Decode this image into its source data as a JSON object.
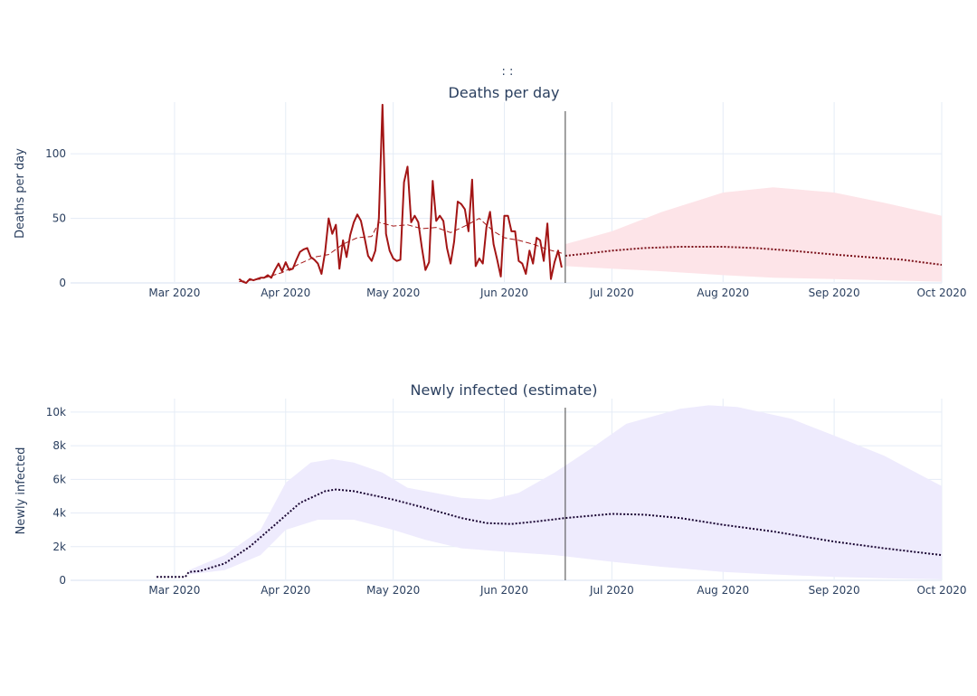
{
  "figure_title": ":          :",
  "colors": {
    "deaths_line": "#a31515",
    "deaths_avg": "#a31515",
    "deaths_forecast": "#7a0f18",
    "deaths_band": "#fde4e8",
    "infected_band": "#eeebfd",
    "infected_line": "#1a0633",
    "grid": "#e5ecf6",
    "divider": "#444444"
  },
  "chart_data": [
    {
      "type": "line",
      "title": "Deaths per day",
      "ylabel": "Deaths per day",
      "xlabel": "",
      "x_range": [
        "2020-02-01",
        "2020-10-01"
      ],
      "ylim": [
        0,
        140
      ],
      "grid": true,
      "x_ticks": [
        {
          "date": "2020-03-01",
          "label": "Mar 2020"
        },
        {
          "date": "2020-04-01",
          "label": "Apr 2020"
        },
        {
          "date": "2020-05-01",
          "label": "May 2020"
        },
        {
          "date": "2020-06-01",
          "label": "Jun 2020"
        },
        {
          "date": "2020-07-01",
          "label": "Jul 2020"
        },
        {
          "date": "2020-08-01",
          "label": "Aug 2020"
        },
        {
          "date": "2020-09-01",
          "label": "Sep 2020"
        },
        {
          "date": "2020-10-01",
          "label": "Oct 2020"
        }
      ],
      "y_ticks": [
        0,
        50,
        100
      ],
      "divider_date": "2020-06-18",
      "observed": {
        "style": "solid",
        "points": [
          [
            "2020-03-19",
            3
          ],
          [
            "2020-03-20",
            1
          ],
          [
            "2020-03-21",
            0
          ],
          [
            "2020-03-22",
            3
          ],
          [
            "2020-03-23",
            2
          ],
          [
            "2020-03-24",
            3
          ],
          [
            "2020-03-25",
            4
          ],
          [
            "2020-03-26",
            4
          ],
          [
            "2020-03-27",
            6
          ],
          [
            "2020-03-28",
            4
          ],
          [
            "2020-03-29",
            10
          ],
          [
            "2020-03-30",
            15
          ],
          [
            "2020-03-31",
            9
          ],
          [
            "2020-04-01",
            16
          ],
          [
            "2020-04-02",
            10
          ],
          [
            "2020-04-03",
            11
          ],
          [
            "2020-04-04",
            18
          ],
          [
            "2020-04-05",
            24
          ],
          [
            "2020-04-06",
            26
          ],
          [
            "2020-04-07",
            27
          ],
          [
            "2020-04-08",
            20
          ],
          [
            "2020-04-09",
            18
          ],
          [
            "2020-04-10",
            15
          ],
          [
            "2020-04-11",
            7
          ],
          [
            "2020-04-12",
            24
          ],
          [
            "2020-04-13",
            50
          ],
          [
            "2020-04-14",
            38
          ],
          [
            "2020-04-15",
            45
          ],
          [
            "2020-04-16",
            11
          ],
          [
            "2020-04-17",
            33
          ],
          [
            "2020-04-18",
            20
          ],
          [
            "2020-04-19",
            37
          ],
          [
            "2020-04-20",
            47
          ],
          [
            "2020-04-21",
            53
          ],
          [
            "2020-04-22",
            48
          ],
          [
            "2020-04-23",
            35
          ],
          [
            "2020-04-24",
            21
          ],
          [
            "2020-04-25",
            17
          ],
          [
            "2020-04-26",
            25
          ],
          [
            "2020-04-27",
            50
          ],
          [
            "2020-04-28",
            138
          ],
          [
            "2020-04-29",
            38
          ],
          [
            "2020-04-30",
            25
          ],
          [
            "2020-05-01",
            19
          ],
          [
            "2020-05-02",
            17
          ],
          [
            "2020-05-03",
            18
          ],
          [
            "2020-05-04",
            78
          ],
          [
            "2020-05-05",
            90
          ],
          [
            "2020-05-06",
            47
          ],
          [
            "2020-05-07",
            52
          ],
          [
            "2020-05-08",
            47
          ],
          [
            "2020-05-09",
            27
          ],
          [
            "2020-05-10",
            10
          ],
          [
            "2020-05-11",
            16
          ],
          [
            "2020-05-12",
            79
          ],
          [
            "2020-05-13",
            48
          ],
          [
            "2020-05-14",
            52
          ],
          [
            "2020-05-15",
            48
          ],
          [
            "2020-05-16",
            27
          ],
          [
            "2020-05-17",
            15
          ],
          [
            "2020-05-18",
            32
          ],
          [
            "2020-05-19",
            63
          ],
          [
            "2020-05-20",
            61
          ],
          [
            "2020-05-21",
            57
          ],
          [
            "2020-05-22",
            40
          ],
          [
            "2020-05-23",
            80
          ],
          [
            "2020-05-24",
            13
          ],
          [
            "2020-05-25",
            19
          ],
          [
            "2020-05-26",
            15
          ],
          [
            "2020-05-27",
            43
          ],
          [
            "2020-05-28",
            55
          ],
          [
            "2020-05-29",
            30
          ],
          [
            "2020-05-30",
            18
          ],
          [
            "2020-05-31",
            5
          ],
          [
            "2020-06-01",
            52
          ],
          [
            "2020-06-02",
            52
          ],
          [
            "2020-06-03",
            40
          ],
          [
            "2020-06-04",
            40
          ],
          [
            "2020-06-05",
            17
          ],
          [
            "2020-06-06",
            15
          ],
          [
            "2020-06-07",
            7
          ],
          [
            "2020-06-08",
            25
          ],
          [
            "2020-06-09",
            15
          ],
          [
            "2020-06-10",
            35
          ],
          [
            "2020-06-11",
            33
          ],
          [
            "2020-06-12",
            17
          ],
          [
            "2020-06-13",
            46
          ],
          [
            "2020-06-14",
            3
          ],
          [
            "2020-06-15",
            16
          ],
          [
            "2020-06-16",
            25
          ],
          [
            "2020-06-17",
            12
          ]
        ]
      },
      "rolling_average": {
        "style": "dash",
        "points": [
          [
            "2020-03-19",
            1
          ],
          [
            "2020-03-25",
            3
          ],
          [
            "2020-03-31",
            8
          ],
          [
            "2020-04-05",
            15
          ],
          [
            "2020-04-09",
            20
          ],
          [
            "2020-04-13",
            22
          ],
          [
            "2020-04-17",
            30
          ],
          [
            "2020-04-21",
            35
          ],
          [
            "2020-04-25",
            36
          ],
          [
            "2020-04-27",
            47
          ],
          [
            "2020-05-01",
            44
          ],
          [
            "2020-05-05",
            45
          ],
          [
            "2020-05-09",
            42
          ],
          [
            "2020-05-13",
            43
          ],
          [
            "2020-05-17",
            39
          ],
          [
            "2020-05-21",
            44
          ],
          [
            "2020-05-25",
            50
          ],
          [
            "2020-05-29",
            40
          ],
          [
            "2020-06-01",
            35
          ],
          [
            "2020-06-05",
            33
          ],
          [
            "2020-06-09",
            30
          ],
          [
            "2020-06-13",
            26
          ],
          [
            "2020-06-17",
            23
          ]
        ]
      },
      "forecast": {
        "style": "dot",
        "points": [
          [
            "2020-06-18",
            21
          ],
          [
            "2020-06-25",
            23
          ],
          [
            "2020-07-01",
            25
          ],
          [
            "2020-07-10",
            27
          ],
          [
            "2020-07-20",
            28
          ],
          [
            "2020-08-01",
            28
          ],
          [
            "2020-08-10",
            27
          ],
          [
            "2020-08-20",
            25
          ],
          [
            "2020-09-01",
            22
          ],
          [
            "2020-09-10",
            20
          ],
          [
            "2020-09-20",
            18
          ],
          [
            "2020-10-01",
            14
          ]
        ]
      },
      "forecast_band": {
        "upper": [
          [
            "2020-06-18",
            30
          ],
          [
            "2020-07-01",
            40
          ],
          [
            "2020-07-15",
            55
          ],
          [
            "2020-08-01",
            70
          ],
          [
            "2020-08-15",
            74
          ],
          [
            "2020-09-01",
            70
          ],
          [
            "2020-09-15",
            62
          ],
          [
            "2020-10-01",
            52
          ]
        ],
        "lower": [
          [
            "2020-06-18",
            13
          ],
          [
            "2020-07-01",
            11
          ],
          [
            "2020-07-15",
            9
          ],
          [
            "2020-08-01",
            6
          ],
          [
            "2020-08-15",
            4
          ],
          [
            "2020-09-01",
            3
          ],
          [
            "2020-09-15",
            2
          ],
          [
            "2020-10-01",
            1
          ]
        ]
      }
    },
    {
      "type": "line",
      "title": "Newly infected (estimate)",
      "ylabel": "Newly infected",
      "xlabel": "",
      "x_range": [
        "2020-02-01",
        "2020-10-01"
      ],
      "ylim": [
        0,
        10800
      ],
      "grid": true,
      "x_ticks": [
        {
          "date": "2020-03-01",
          "label": "Mar 2020"
        },
        {
          "date": "2020-04-01",
          "label": "Apr 2020"
        },
        {
          "date": "2020-05-01",
          "label": "May 2020"
        },
        {
          "date": "2020-06-01",
          "label": "Jun 2020"
        },
        {
          "date": "2020-07-01",
          "label": "Jul 2020"
        },
        {
          "date": "2020-08-01",
          "label": "Aug 2020"
        },
        {
          "date": "2020-09-01",
          "label": "Sep 2020"
        },
        {
          "date": "2020-10-01",
          "label": "Oct 2020"
        }
      ],
      "y_ticks": [
        {
          "value": 0,
          "label": "0"
        },
        {
          "value": 2000,
          "label": "2k"
        },
        {
          "value": 4000,
          "label": "4k"
        },
        {
          "value": 6000,
          "label": "6k"
        },
        {
          "value": 8000,
          "label": "8k"
        },
        {
          "value": 10000,
          "label": "10k"
        }
      ],
      "divider_date": "2020-06-18",
      "estimate": {
        "style": "dot",
        "points": [
          [
            "2020-02-25",
            200
          ],
          [
            "2020-03-04",
            200
          ],
          [
            "2020-03-05",
            500
          ],
          [
            "2020-03-08",
            550
          ],
          [
            "2020-03-15",
            1000
          ],
          [
            "2020-03-22",
            2000
          ],
          [
            "2020-03-29",
            3300
          ],
          [
            "2020-04-05",
            4600
          ],
          [
            "2020-04-12",
            5300
          ],
          [
            "2020-04-15",
            5400
          ],
          [
            "2020-04-20",
            5300
          ],
          [
            "2020-05-01",
            4800
          ],
          [
            "2020-05-10",
            4300
          ],
          [
            "2020-05-20",
            3700
          ],
          [
            "2020-05-27",
            3400
          ],
          [
            "2020-06-03",
            3350
          ],
          [
            "2020-06-10",
            3500
          ],
          [
            "2020-06-18",
            3700
          ],
          [
            "2020-07-01",
            3950
          ],
          [
            "2020-07-10",
            3900
          ],
          [
            "2020-07-20",
            3700
          ],
          [
            "2020-08-01",
            3300
          ],
          [
            "2020-08-15",
            2900
          ],
          [
            "2020-09-01",
            2300
          ],
          [
            "2020-09-15",
            1900
          ],
          [
            "2020-10-01",
            1500
          ]
        ]
      },
      "estimate_band": {
        "upper": [
          [
            "2020-03-05",
            600
          ],
          [
            "2020-03-15",
            1500
          ],
          [
            "2020-03-25",
            3000
          ],
          [
            "2020-04-01",
            5800
          ],
          [
            "2020-04-08",
            7000
          ],
          [
            "2020-04-14",
            7200
          ],
          [
            "2020-04-20",
            7000
          ],
          [
            "2020-04-28",
            6400
          ],
          [
            "2020-05-05",
            5500
          ],
          [
            "2020-05-20",
            4900
          ],
          [
            "2020-05-28",
            4800
          ],
          [
            "2020-06-05",
            5200
          ],
          [
            "2020-06-15",
            6400
          ],
          [
            "2020-06-25",
            7800
          ],
          [
            "2020-07-05",
            9300
          ],
          [
            "2020-07-20",
            10200
          ],
          [
            "2020-07-28",
            10400
          ],
          [
            "2020-08-05",
            10300
          ],
          [
            "2020-08-20",
            9600
          ],
          [
            "2020-09-01",
            8600
          ],
          [
            "2020-09-15",
            7400
          ],
          [
            "2020-10-01",
            5600
          ]
        ],
        "lower": [
          [
            "2020-03-05",
            350
          ],
          [
            "2020-03-15",
            600
          ],
          [
            "2020-03-25",
            1500
          ],
          [
            "2020-04-01",
            3000
          ],
          [
            "2020-04-10",
            3600
          ],
          [
            "2020-04-20",
            3600
          ],
          [
            "2020-05-01",
            3000
          ],
          [
            "2020-05-10",
            2400
          ],
          [
            "2020-05-20",
            1900
          ],
          [
            "2020-06-01",
            1700
          ],
          [
            "2020-06-15",
            1500
          ],
          [
            "2020-07-01",
            1100
          ],
          [
            "2020-07-15",
            800
          ],
          [
            "2020-08-01",
            500
          ],
          [
            "2020-08-15",
            350
          ],
          [
            "2020-09-01",
            200
          ],
          [
            "2020-09-15",
            120
          ],
          [
            "2020-10-01",
            60
          ]
        ]
      }
    }
  ]
}
